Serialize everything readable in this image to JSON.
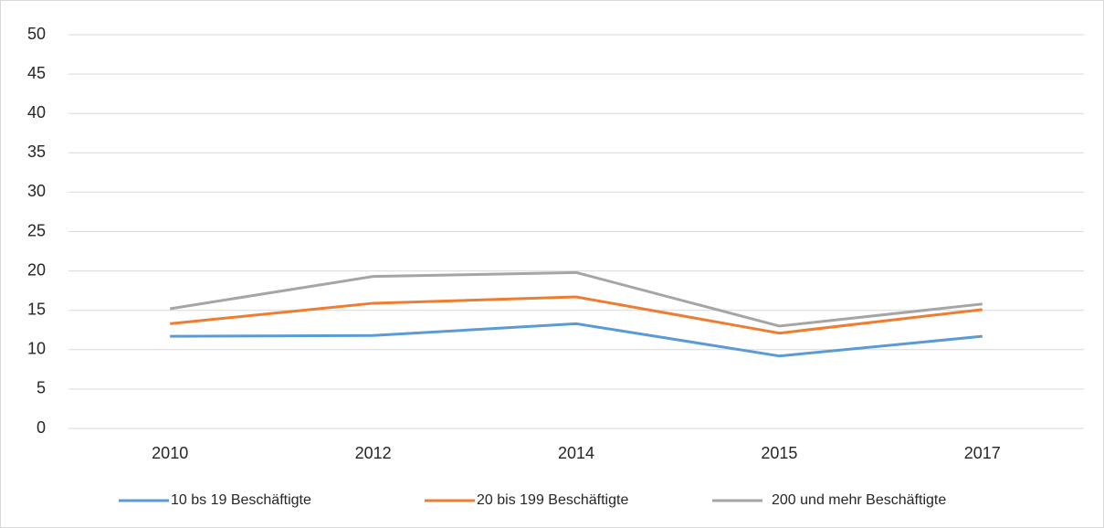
{
  "chart_data": {
    "type": "line",
    "categories": [
      "2010",
      "2012",
      "2014",
      "2015",
      "2017"
    ],
    "series": [
      {
        "name": "10 bs 19 Beschäftigte",
        "color": "#5b9bd5",
        "values": [
          11.7,
          11.8,
          13.3,
          9.2,
          11.7
        ]
      },
      {
        "name": "20 bis 199 Beschäftigte",
        "color": "#ed7d31",
        "values": [
          13.3,
          15.9,
          16.7,
          12.1,
          15.1
        ]
      },
      {
        "name": "200 und mehr Beschäftigte",
        "color": "#a5a5a5",
        "values": [
          15.2,
          19.3,
          19.8,
          13.0,
          15.8
        ]
      }
    ],
    "ylim": [
      0,
      50
    ],
    "yticks": [
      0,
      5,
      10,
      15,
      20,
      25,
      30,
      35,
      40,
      45,
      50
    ],
    "grid": true,
    "legend": "bottom"
  }
}
